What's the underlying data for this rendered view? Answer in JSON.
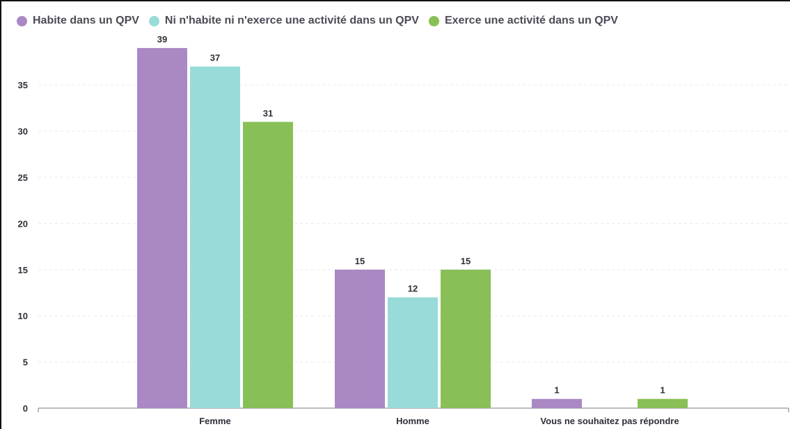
{
  "chart_data": {
    "type": "bar",
    "categories": [
      "Femme",
      "Homme",
      "Vous ne souhaitez pas répondre"
    ],
    "series": [
      {
        "name": "Habite dans un QPV",
        "color": "#a988c4",
        "values": [
          39,
          15,
          1
        ]
      },
      {
        "name": "Ni n'habite ni n'exerce une activité dans un QPV",
        "color": "#99dbd9",
        "values": [
          37,
          12,
          null
        ]
      },
      {
        "name": "Exerce une activité dans un QPV",
        "color": "#89bf57",
        "values": [
          31,
          15,
          1
        ]
      }
    ],
    "yticks": [
      0,
      5,
      10,
      15,
      20,
      25,
      30,
      35
    ],
    "ylim": [
      0,
      39
    ],
    "grid": true,
    "legend": "top-left",
    "data_labels": true,
    "title": "",
    "xlabel": "",
    "ylabel": ""
  }
}
